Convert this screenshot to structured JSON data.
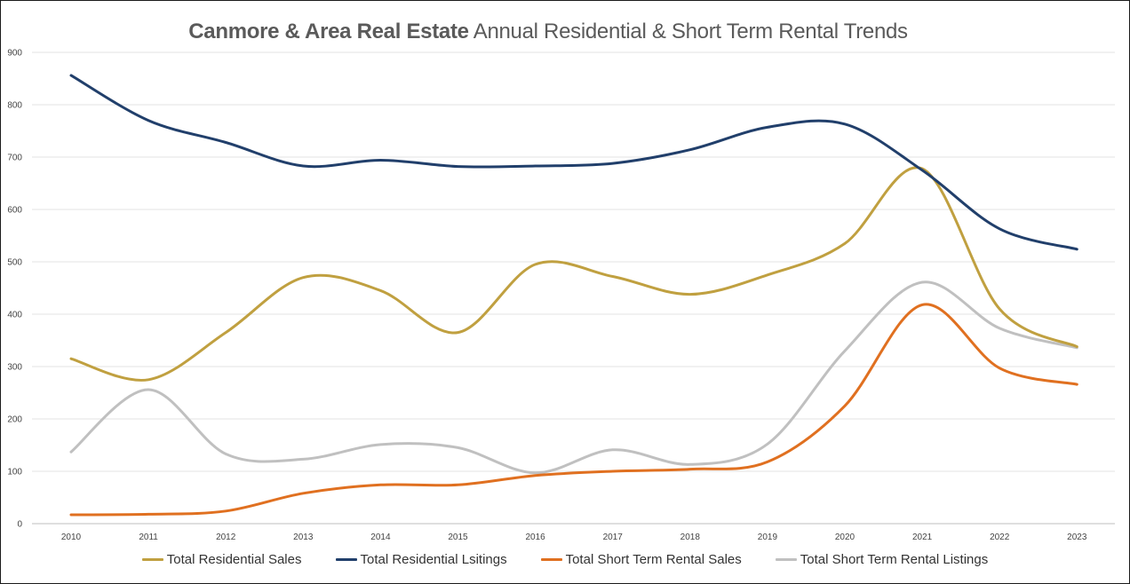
{
  "chart_data": {
    "type": "line",
    "title_bold": "Canmore & Area Real Estate",
    "title_rest": "Annual Residential & Short Term Rental Trends",
    "categories": [
      "2010",
      "2011",
      "2012",
      "2013",
      "2014",
      "2015",
      "2016",
      "2017",
      "2018",
      "2019",
      "2020",
      "2021",
      "2022",
      "2023"
    ],
    "ylim": [
      0,
      900
    ],
    "yticks": [
      "0",
      "100",
      "200",
      "300",
      "400",
      "500",
      "600",
      "700",
      "800",
      "900"
    ],
    "grid": true,
    "legend_position": "bottom",
    "series": [
      {
        "name": "Total Residential Sales",
        "color": "#C0A040",
        "values": [
          315,
          275,
          365,
          470,
          445,
          365,
          495,
          472,
          438,
          475,
          535,
          678,
          410,
          338
        ]
      },
      {
        "name": "Total Residential Lsitings",
        "color": "#213F6B",
        "values": [
          856,
          770,
          728,
          683,
          694,
          682,
          683,
          688,
          714,
          757,
          763,
          675,
          563,
          524
        ]
      },
      {
        "name": "Total Short Term Rental Sales",
        "color": "#E07020",
        "values": [
          17,
          18,
          24,
          58,
          74,
          74,
          92,
          100,
          104,
          118,
          225,
          418,
          297,
          266
        ]
      },
      {
        "name": "Total Short Term Rental Listings",
        "color": "#C0C0C0",
        "values": [
          137,
          256,
          133,
          123,
          151,
          145,
          97,
          141,
          113,
          152,
          330,
          461,
          373,
          336
        ]
      }
    ]
  }
}
